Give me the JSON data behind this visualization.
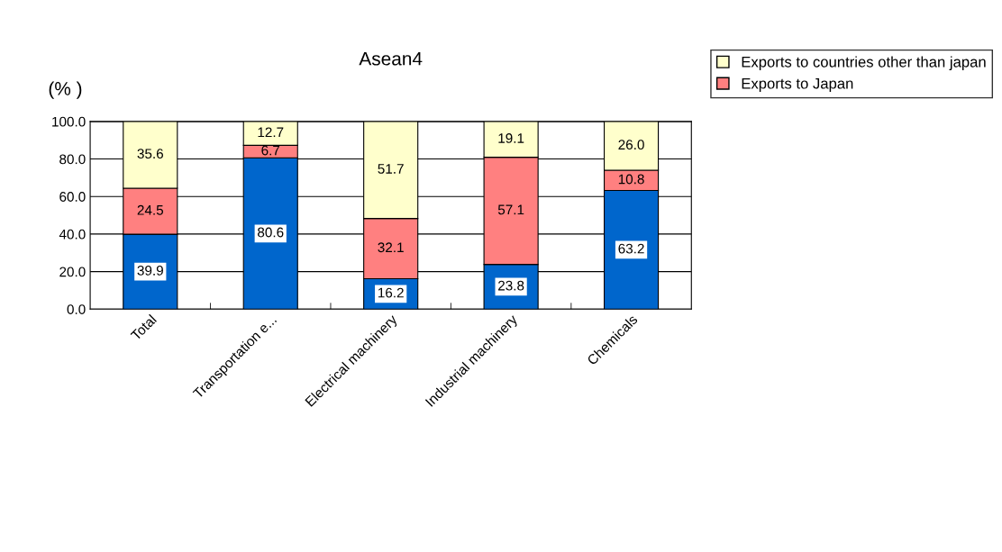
{
  "chart_data": {
    "type": "bar",
    "title": "Asean4",
    "ylabel": "(% )",
    "stacked": true,
    "categories": [
      "Total",
      "Transportation e...",
      "Electrical machinery",
      "Industrial machinery",
      "Chemicals"
    ],
    "series": [
      {
        "color": "#0066cc",
        "values": [
          39.9,
          80.6,
          16.2,
          23.8,
          63.2
        ],
        "value_labels": [
          "39.9",
          "80.6",
          "16.2",
          "23.8",
          "63.2"
        ]
      },
      {
        "name": "Exports to Japan",
        "color": "#ff8080",
        "values": [
          24.5,
          6.7,
          32.1,
          57.1,
          10.8
        ],
        "value_labels": [
          "24.5",
          "6.7",
          "32.1",
          "57.1",
          "10.8"
        ]
      },
      {
        "name": "Exports to countries other than japan",
        "color": "#ffffcc",
        "values": [
          35.6,
          12.7,
          51.7,
          19.1,
          26.0
        ],
        "value_labels": [
          "35.6",
          "12.7",
          "51.7",
          "19.1",
          "26.0"
        ]
      }
    ],
    "ylim": [
      0,
      100
    ],
    "yticks": [
      {
        "value": 0,
        "label": "0.0"
      },
      {
        "value": 20,
        "label": "20.0"
      },
      {
        "value": 40,
        "label": "40.0"
      },
      {
        "value": 60,
        "label": "60.0"
      },
      {
        "value": 80,
        "label": "80.0"
      },
      {
        "value": 100,
        "label": "100.0"
      }
    ],
    "grid": "y",
    "legend": "top right"
  }
}
